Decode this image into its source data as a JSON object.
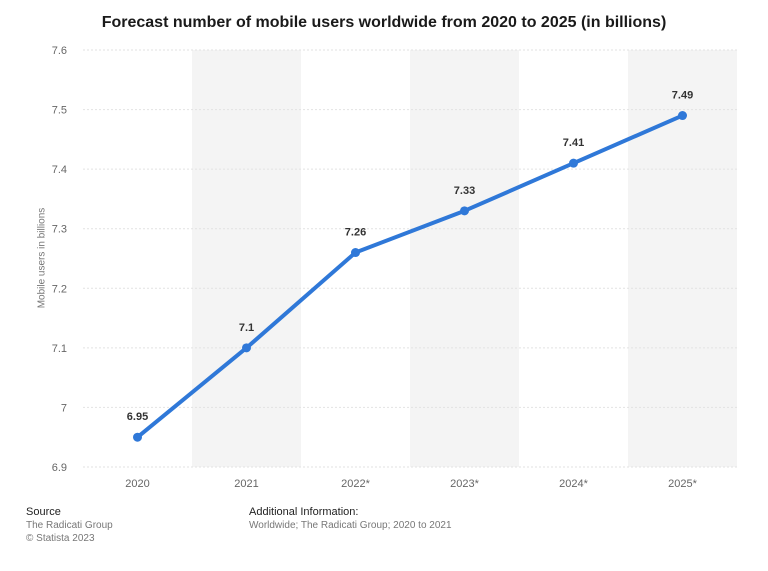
{
  "chart_data": {
    "type": "line",
    "title": "Forecast number of mobile users worldwide from 2020 to 2025 (in billions)",
    "xlabel": "",
    "ylabel": "Mobile users in billions",
    "categories": [
      "2020",
      "2021",
      "2022*",
      "2023*",
      "2024*",
      "2025*"
    ],
    "series": [
      {
        "values": [
          6.95,
          7.1,
          7.26,
          7.33,
          7.41,
          7.49
        ]
      }
    ],
    "data_labels": [
      "6.95",
      "7.1",
      "7.26",
      "7.33",
      "7.41",
      "7.49"
    ],
    "ylim": [
      6.9,
      7.6
    ],
    "yticks": [
      6.9,
      7.0,
      7.1,
      7.2,
      7.3,
      7.4,
      7.5,
      7.6
    ],
    "ytick_labels": [
      "6.9",
      "7",
      "7.1",
      "7.2",
      "7.3",
      "7.4",
      "7.5",
      "7.6"
    ],
    "grid": true,
    "line_color": "#2f78d8",
    "band_color": "#f4f4f4"
  },
  "footer": {
    "source_heading": "Source",
    "source_name": "The Radicati Group",
    "copyright": "© Statista 2023",
    "info_heading": "Additional Information:",
    "info_text": "Worldwide; The Radicati Group; 2020 to 2021"
  }
}
